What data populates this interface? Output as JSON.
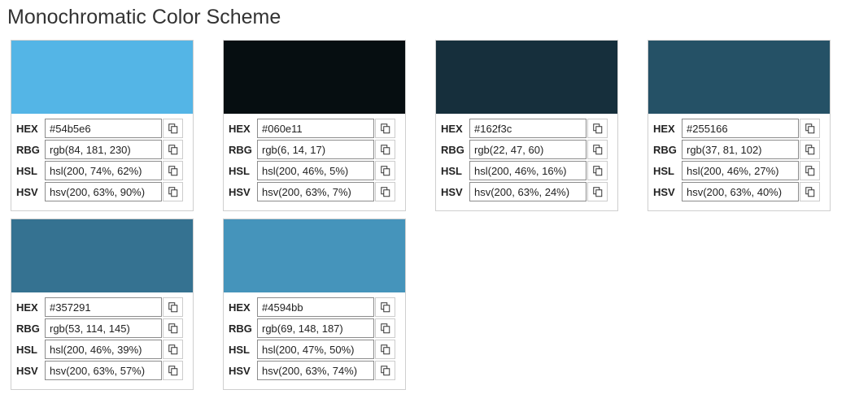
{
  "page": {
    "title": "Monochromatic Color Scheme"
  },
  "labels": {
    "hex": "HEX",
    "rgb": "RBG",
    "hsl": "HSL",
    "hsv": "HSV"
  },
  "icons": {
    "copy": "copy-icon"
  },
  "colors": [
    {
      "swatch": "#54b5e6",
      "hex": "#54b5e6",
      "rgb": "rgb(84, 181, 230)",
      "hsl": "hsl(200, 74%, 62%)",
      "hsv": "hsv(200, 63%, 90%)"
    },
    {
      "swatch": "#060e11",
      "hex": "#060e11",
      "rgb": "rgb(6, 14, 17)",
      "hsl": "hsl(200, 46%, 5%)",
      "hsv": "hsv(200, 63%, 7%)"
    },
    {
      "swatch": "#162f3c",
      "hex": "#162f3c",
      "rgb": "rgb(22, 47, 60)",
      "hsl": "hsl(200, 46%, 16%)",
      "hsv": "hsv(200, 63%, 24%)"
    },
    {
      "swatch": "#255166",
      "hex": "#255166",
      "rgb": "rgb(37, 81, 102)",
      "hsl": "hsl(200, 46%, 27%)",
      "hsv": "hsv(200, 63%, 40%)"
    },
    {
      "swatch": "#357291",
      "hex": "#357291",
      "rgb": "rgb(53, 114, 145)",
      "hsl": "hsl(200, 46%, 39%)",
      "hsv": "hsv(200, 63%, 57%)"
    },
    {
      "swatch": "#4594bb",
      "hex": "#4594bb",
      "rgb": "rgb(69, 148, 187)",
      "hsl": "hsl(200, 47%, 50%)",
      "hsv": "hsv(200, 63%, 74%)"
    }
  ]
}
